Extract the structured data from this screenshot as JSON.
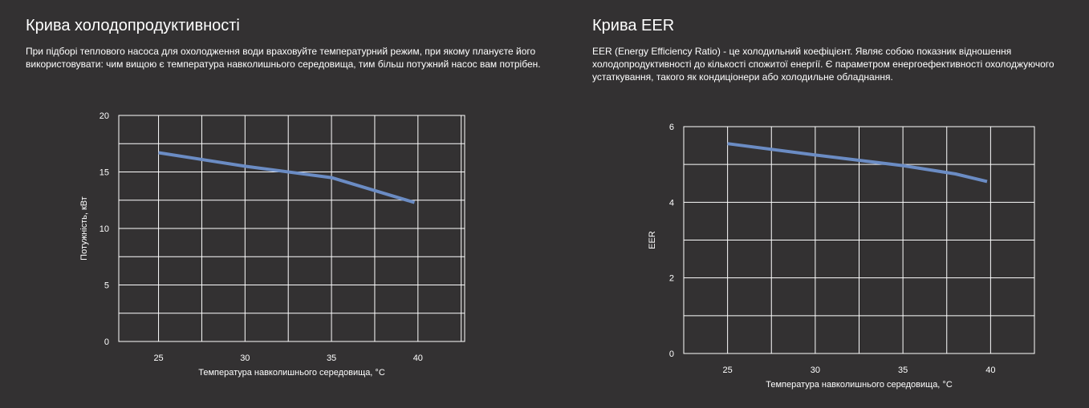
{
  "left": {
    "title": "Крива холодопродуктивності",
    "description": "При підборі теплового насоса для охолодження води враховуйте температурний режим, при якому плануєте його використовувати: чим вищою є температура навколишнього середовища, тим більш потужний насос вам потрібен."
  },
  "right": {
    "title": "Крива EER",
    "description": "EER (Energy Efficiency Ratio) - це холодильний коефіцієнт. Являє собою показник відношення холодопродуктивності до кількості спожитої енергії. Є параметром енергоефективності охолоджуючого устаткування, такого як кондиціонери або холодильне обладнання."
  },
  "chart_data": [
    {
      "type": "line",
      "xlabel": "Температура навколишнього середовища, °C",
      "ylabel": "Потужність, кВт",
      "xlim": [
        22.7,
        42.7
      ],
      "ylim": [
        0,
        20
      ],
      "x_ticks": [
        25,
        30,
        35,
        40
      ],
      "y_ticks": [
        0,
        5,
        10,
        15,
        20
      ],
      "grid": true,
      "series_color": "#6b8cc4",
      "series": [
        {
          "x": [
            25,
            30,
            35,
            39.8
          ],
          "y": [
            16.7,
            15.5,
            14.5,
            12.3
          ]
        }
      ]
    },
    {
      "type": "line",
      "xlabel": "Температура навколишнього середовища, °C",
      "ylabel": "EER",
      "xlim": [
        22.5,
        42.5
      ],
      "ylim": [
        0,
        6
      ],
      "x_ticks": [
        25,
        30,
        35,
        40
      ],
      "y_ticks": [
        0,
        2,
        4,
        6
      ],
      "grid": true,
      "series_color": "#6b8cc4",
      "series": [
        {
          "x": [
            25,
            30,
            35,
            38,
            39.8
          ],
          "y": [
            5.55,
            5.25,
            4.97,
            4.75,
            4.55
          ]
        }
      ]
    }
  ]
}
